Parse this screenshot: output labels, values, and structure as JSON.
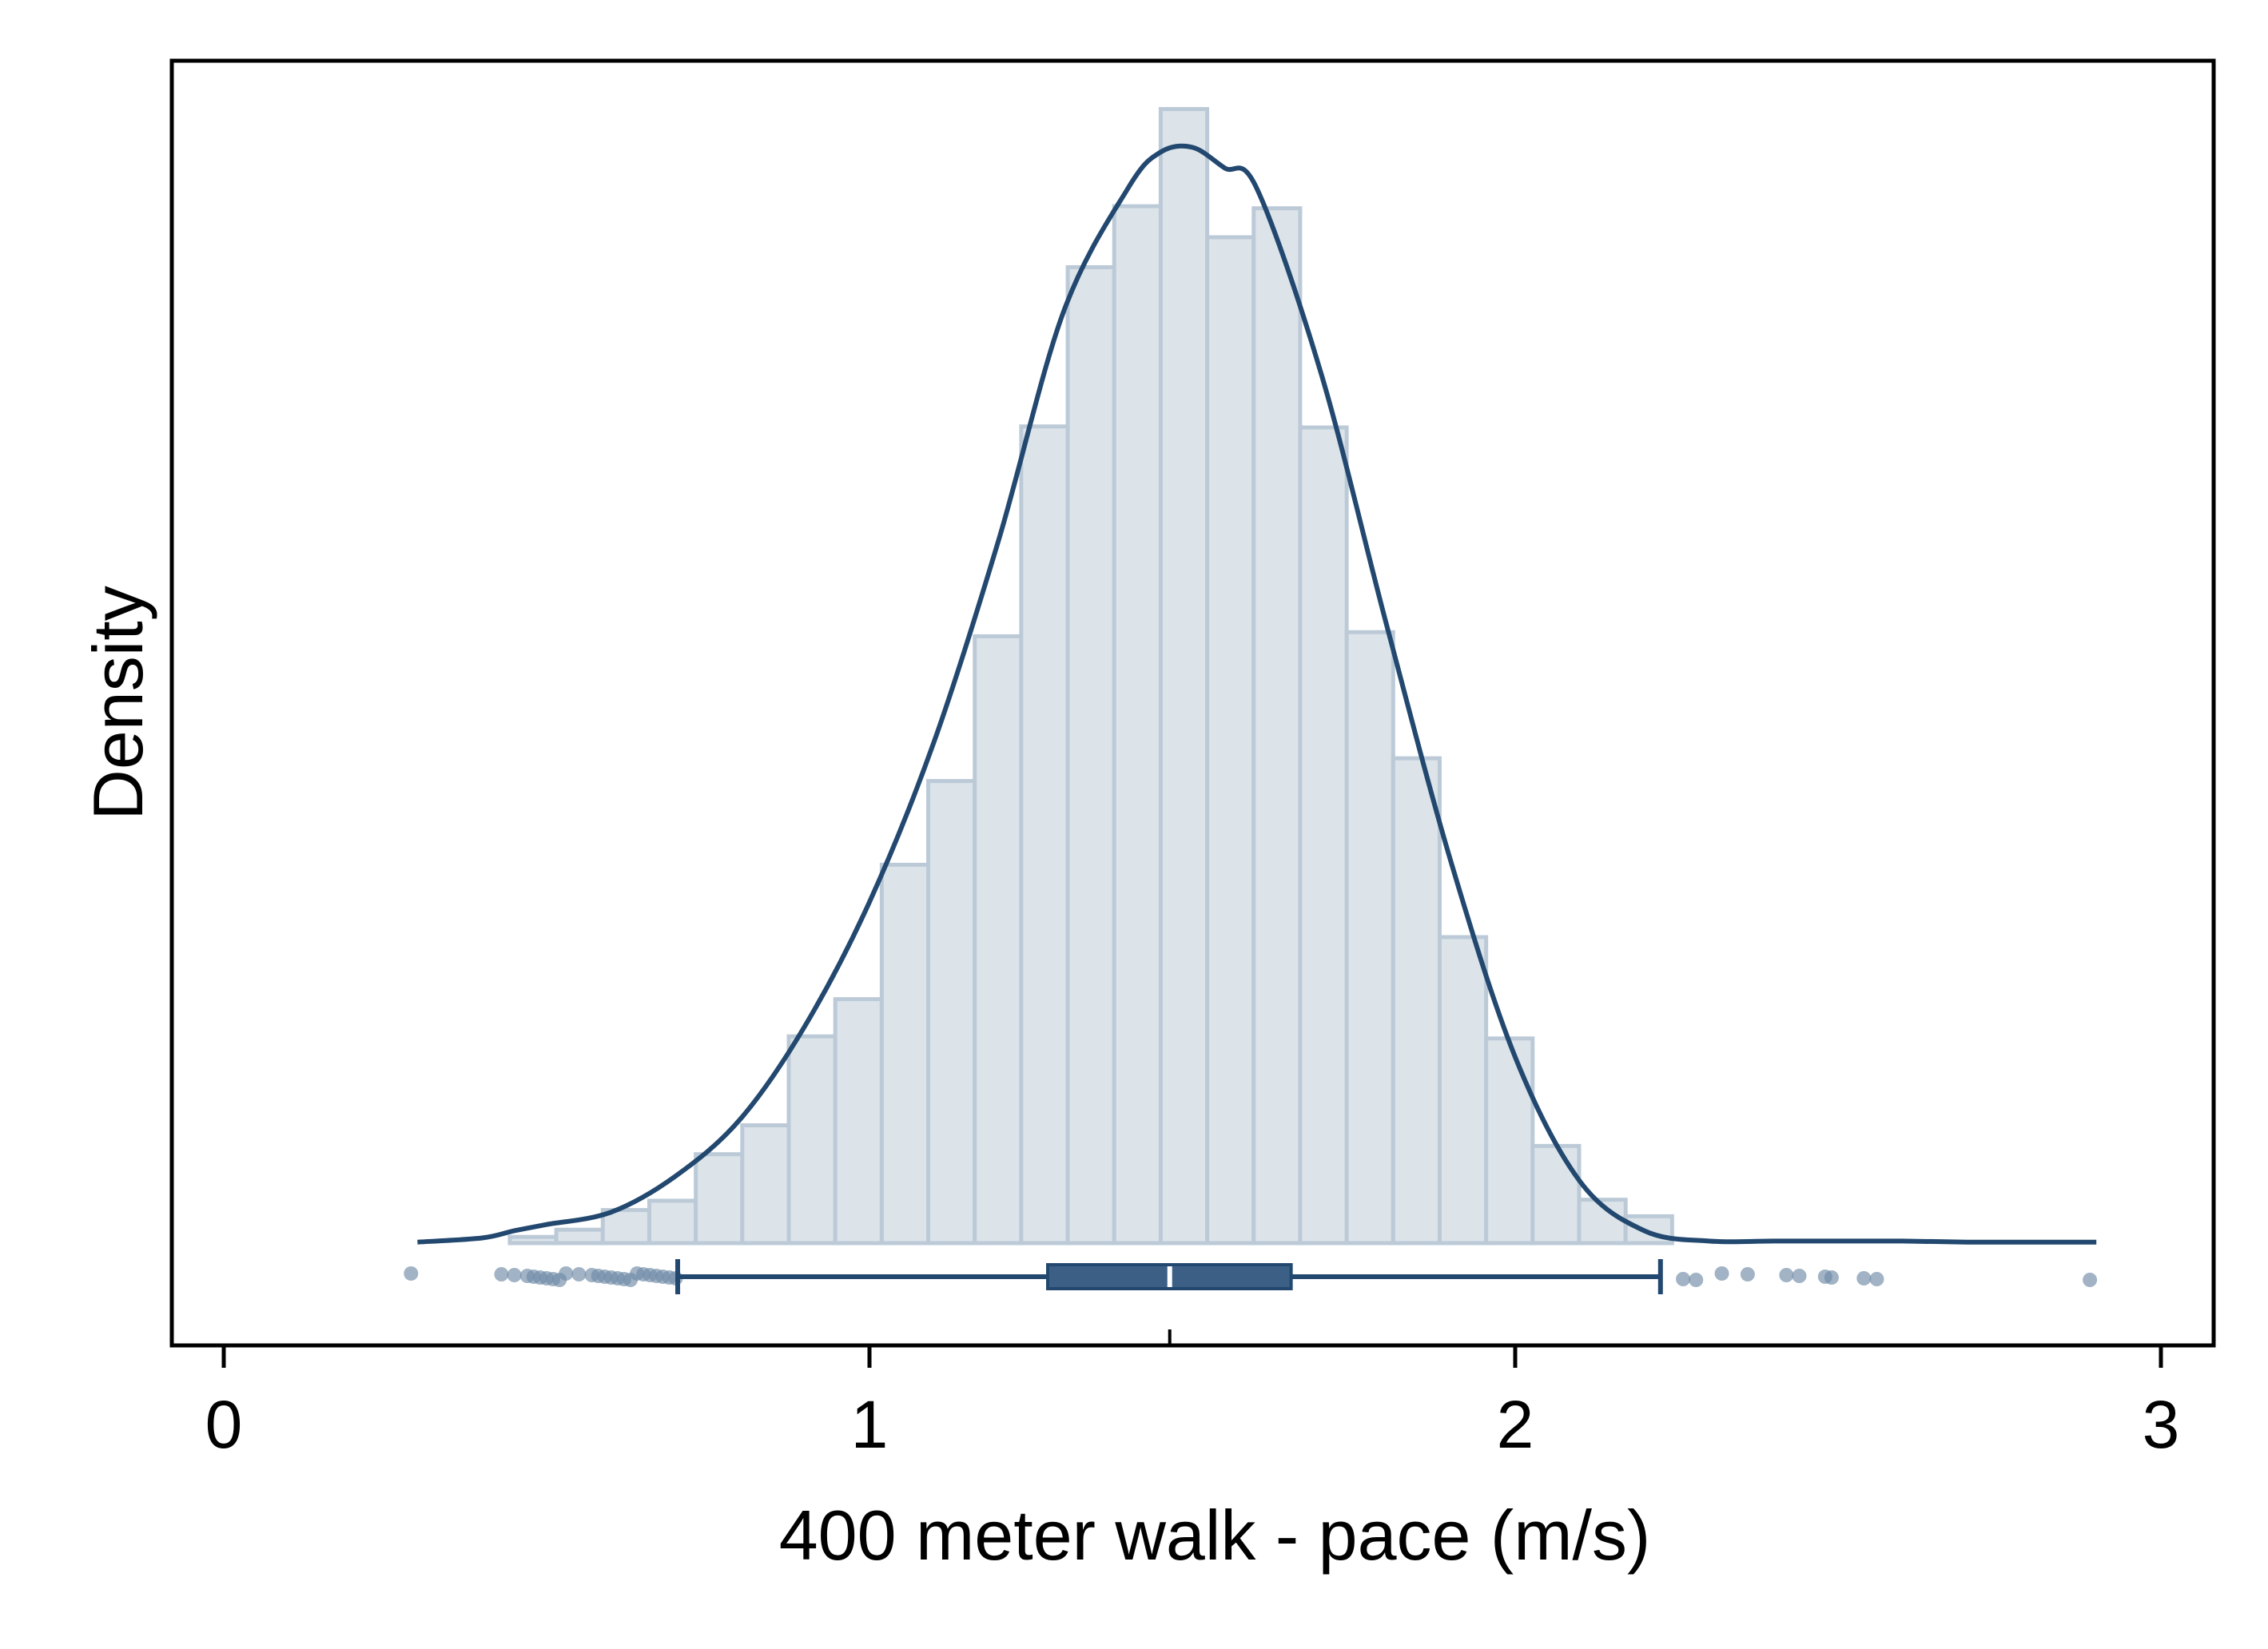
{
  "chart_data": {
    "type": "histogram",
    "title": "",
    "xlabel": "400 meter walk - pace (m/s)",
    "ylabel": "Density",
    "xlim": [
      -0.08,
      3.08
    ],
    "x_ticks": [
      0,
      1,
      2,
      3
    ],
    "y_ticks": [],
    "grid": false,
    "legend": "none",
    "colors": {
      "bar_fill": "#dce4ea",
      "bar_edge": "#bccad8",
      "line": "#23486f",
      "box": "#3c5f86",
      "points": "#6e8aa6"
    },
    "histogram": {
      "bin_width": 0.072,
      "bins": [
        {
          "start": 0.443,
          "density": 0.006
        },
        {
          "start": 0.515,
          "density": 0.013
        },
        {
          "start": 0.587,
          "density": 0.032
        },
        {
          "start": 0.659,
          "density": 0.041
        },
        {
          "start": 0.731,
          "density": 0.086
        },
        {
          "start": 0.803,
          "density": 0.114
        },
        {
          "start": 0.875,
          "density": 0.2
        },
        {
          "start": 0.947,
          "density": 0.236
        },
        {
          "start": 1.019,
          "density": 0.366
        },
        {
          "start": 1.091,
          "density": 0.447
        },
        {
          "start": 1.163,
          "density": 0.587
        },
        {
          "start": 1.235,
          "density": 0.79
        },
        {
          "start": 1.307,
          "density": 0.944
        },
        {
          "start": 1.379,
          "density": 1.003
        },
        {
          "start": 1.451,
          "density": 1.097
        },
        {
          "start": 1.523,
          "density": 0.973
        },
        {
          "start": 1.595,
          "density": 1.001
        },
        {
          "start": 1.667,
          "density": 0.789
        },
        {
          "start": 1.739,
          "density": 0.591
        },
        {
          "start": 1.811,
          "density": 0.469
        },
        {
          "start": 1.883,
          "density": 0.296
        },
        {
          "start": 1.955,
          "density": 0.198
        },
        {
          "start": 2.027,
          "density": 0.094
        },
        {
          "start": 2.099,
          "density": 0.042
        },
        {
          "start": 2.171,
          "density": 0.026
        }
      ]
    },
    "density_curve": {
      "x": [
        0.3,
        0.4,
        0.45,
        0.5,
        0.6,
        0.7,
        0.8,
        0.9,
        1.0,
        1.1,
        1.2,
        1.3,
        1.4,
        1.45,
        1.5,
        1.55,
        1.6,
        1.7,
        1.8,
        1.9,
        2.0,
        2.1,
        2.2,
        2.3,
        2.4,
        2.5,
        2.6,
        2.7,
        2.8,
        2.9
      ],
      "y": [
        0.001,
        0.005,
        0.012,
        0.018,
        0.03,
        0.065,
        0.12,
        0.21,
        0.33,
        0.485,
        0.68,
        0.9,
        1.02,
        1.055,
        1.06,
        1.04,
        1.02,
        0.84,
        0.6,
        0.37,
        0.18,
        0.06,
        0.012,
        0.002,
        0.002,
        0.002,
        0.002,
        0.001,
        0.001,
        0.001
      ]
    },
    "boxplot": {
      "whisker_low": 0.703,
      "q1": 1.276,
      "median": 1.465,
      "q3": 1.653,
      "whisker_high": 2.225,
      "outliers": [
        0.29,
        0.43,
        0.45,
        0.47,
        0.48,
        0.49,
        0.5,
        0.51,
        0.52,
        0.53,
        0.55,
        0.57,
        0.58,
        0.59,
        0.6,
        0.61,
        0.62,
        0.63,
        0.64,
        0.65,
        0.66,
        0.67,
        0.68,
        0.69,
        0.7,
        2.26,
        2.28,
        2.32,
        2.36,
        2.42,
        2.44,
        2.48,
        2.49,
        2.54,
        2.56,
        2.89
      ]
    }
  }
}
